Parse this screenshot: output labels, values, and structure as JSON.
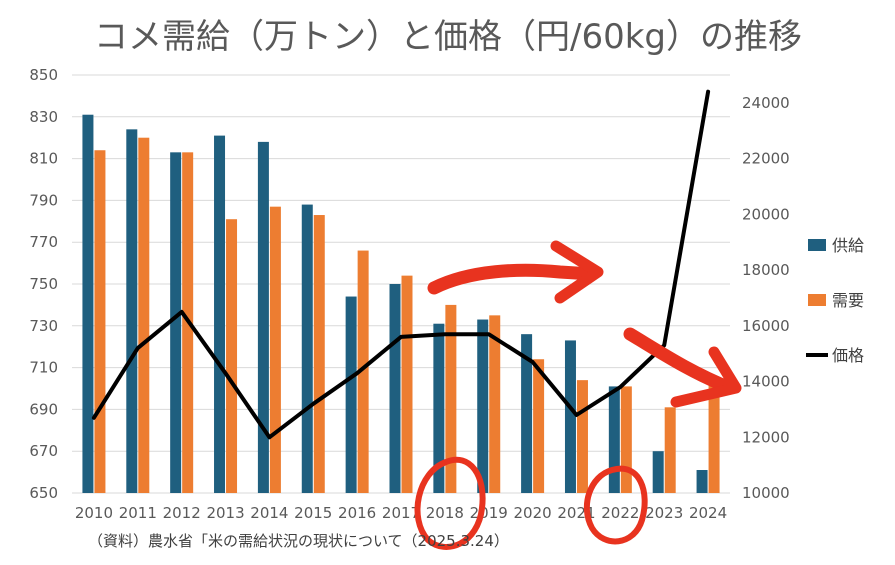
{
  "chart_data": {
    "type": "bar",
    "title": "コメ需給（万トン）と価格（円/60kg）の推移",
    "categories": [
      "2010",
      "2011",
      "2012",
      "2013",
      "2014",
      "2015",
      "2016",
      "2017",
      "2018",
      "2019",
      "2020",
      "2021",
      "2022",
      "2023",
      "2024"
    ],
    "series": [
      {
        "name": "供給",
        "type": "bar",
        "axis": "left",
        "values": [
          831,
          824,
          813,
          821,
          818,
          788,
          744,
          750,
          731,
          733,
          726,
          723,
          701,
          670,
          661
        ]
      },
      {
        "name": "需要",
        "type": "bar",
        "axis": "left",
        "values": [
          814,
          820,
          813,
          781,
          787,
          783,
          766,
          754,
          740,
          735,
          714,
          704,
          701,
          691,
          705
        ]
      },
      {
        "name": "価格",
        "type": "line",
        "axis": "right",
        "values": [
          12700,
          15200,
          16500,
          14300,
          12000,
          13200,
          14300,
          15600,
          15700,
          15700,
          14700,
          12800,
          13800,
          15300,
          24400
        ]
      }
    ],
    "y_left": {
      "min": 650,
      "max": 850,
      "ticks": [
        "650",
        "670",
        "690",
        "710",
        "730",
        "750",
        "770",
        "790",
        "810",
        "830",
        "850"
      ]
    },
    "y_right": {
      "min": 10000,
      "max": 25000,
      "ticks": [
        "10000",
        "12000",
        "14000",
        "16000",
        "18000",
        "20000",
        "22000",
        "24000"
      ]
    },
    "legend_position": "right",
    "colors": {
      "supply": "#1f5f7f",
      "demand": "#ed7d31",
      "price": "#000000",
      "annotation": "#e8331f",
      "text": "#595959"
    },
    "source_note": "（資料）農水省「米の需給状況の現状について（2025.3.24）",
    "annotations": [
      "red arrow marker 2017–2020",
      "red arrow marker 2022–2024",
      "red circle around 2018",
      "red circle around 2022"
    ]
  }
}
